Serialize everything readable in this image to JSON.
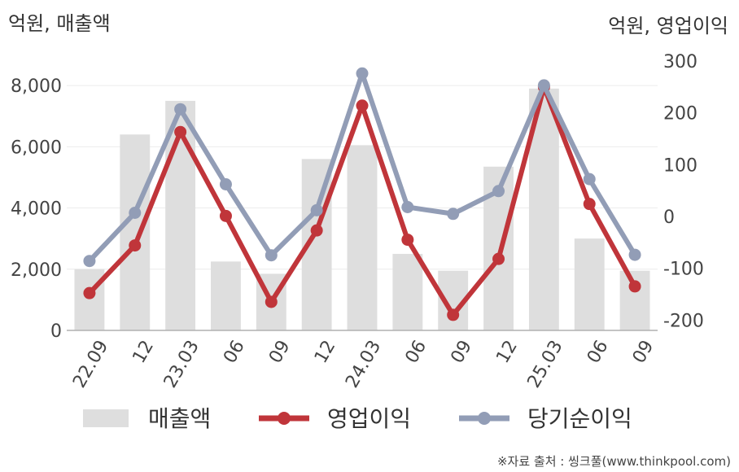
{
  "chart_data": {
    "type": "bar+line",
    "categories": [
      "22.09",
      "12",
      "23.03",
      "06",
      "09",
      "12",
      "24.03",
      "06",
      "09",
      "12",
      "25.03",
      "06",
      "09"
    ],
    "left_axis_unit": "억원, 매출액",
    "right_axis_unit": "억원, 영업이익",
    "left_ylim": [
      0,
      8800
    ],
    "left_ticks": [
      "0",
      "2,000",
      "4,000",
      "6,000",
      "8,000"
    ],
    "left_tick_values": [
      0,
      2000,
      4000,
      6000,
      8000
    ],
    "right_ylim": [
      -220,
      300
    ],
    "right_ticks": [
      "-200",
      "-100",
      "0",
      "100",
      "200",
      "300"
    ],
    "right_tick_values": [
      -200,
      -100,
      0,
      100,
      200,
      300
    ],
    "grid": true,
    "legend_position": "bottom",
    "series": [
      {
        "name": "매출액",
        "type": "bar",
        "axis": "left",
        "color": "#dedede",
        "values": [
          2000,
          6400,
          7500,
          2250,
          1850,
          5600,
          6050,
          2500,
          1950,
          5350,
          7900,
          3000,
          1950
        ]
      },
      {
        "name": "영업이익",
        "type": "line",
        "axis": "right",
        "color": "#c0353a",
        "values": [
          -148,
          -56,
          163,
          1,
          -165,
          -27,
          214,
          -45,
          -190,
          -82,
          250,
          24,
          -135
        ]
      },
      {
        "name": "당기순이익",
        "type": "line",
        "axis": "right",
        "color": "#929db6",
        "values": [
          -86,
          7,
          207,
          62,
          -75,
          12,
          276,
          18,
          5,
          49,
          253,
          72,
          -74
        ]
      }
    ]
  },
  "source": "※자료 출처 : 씽크풀(www.thinkpool.com)"
}
